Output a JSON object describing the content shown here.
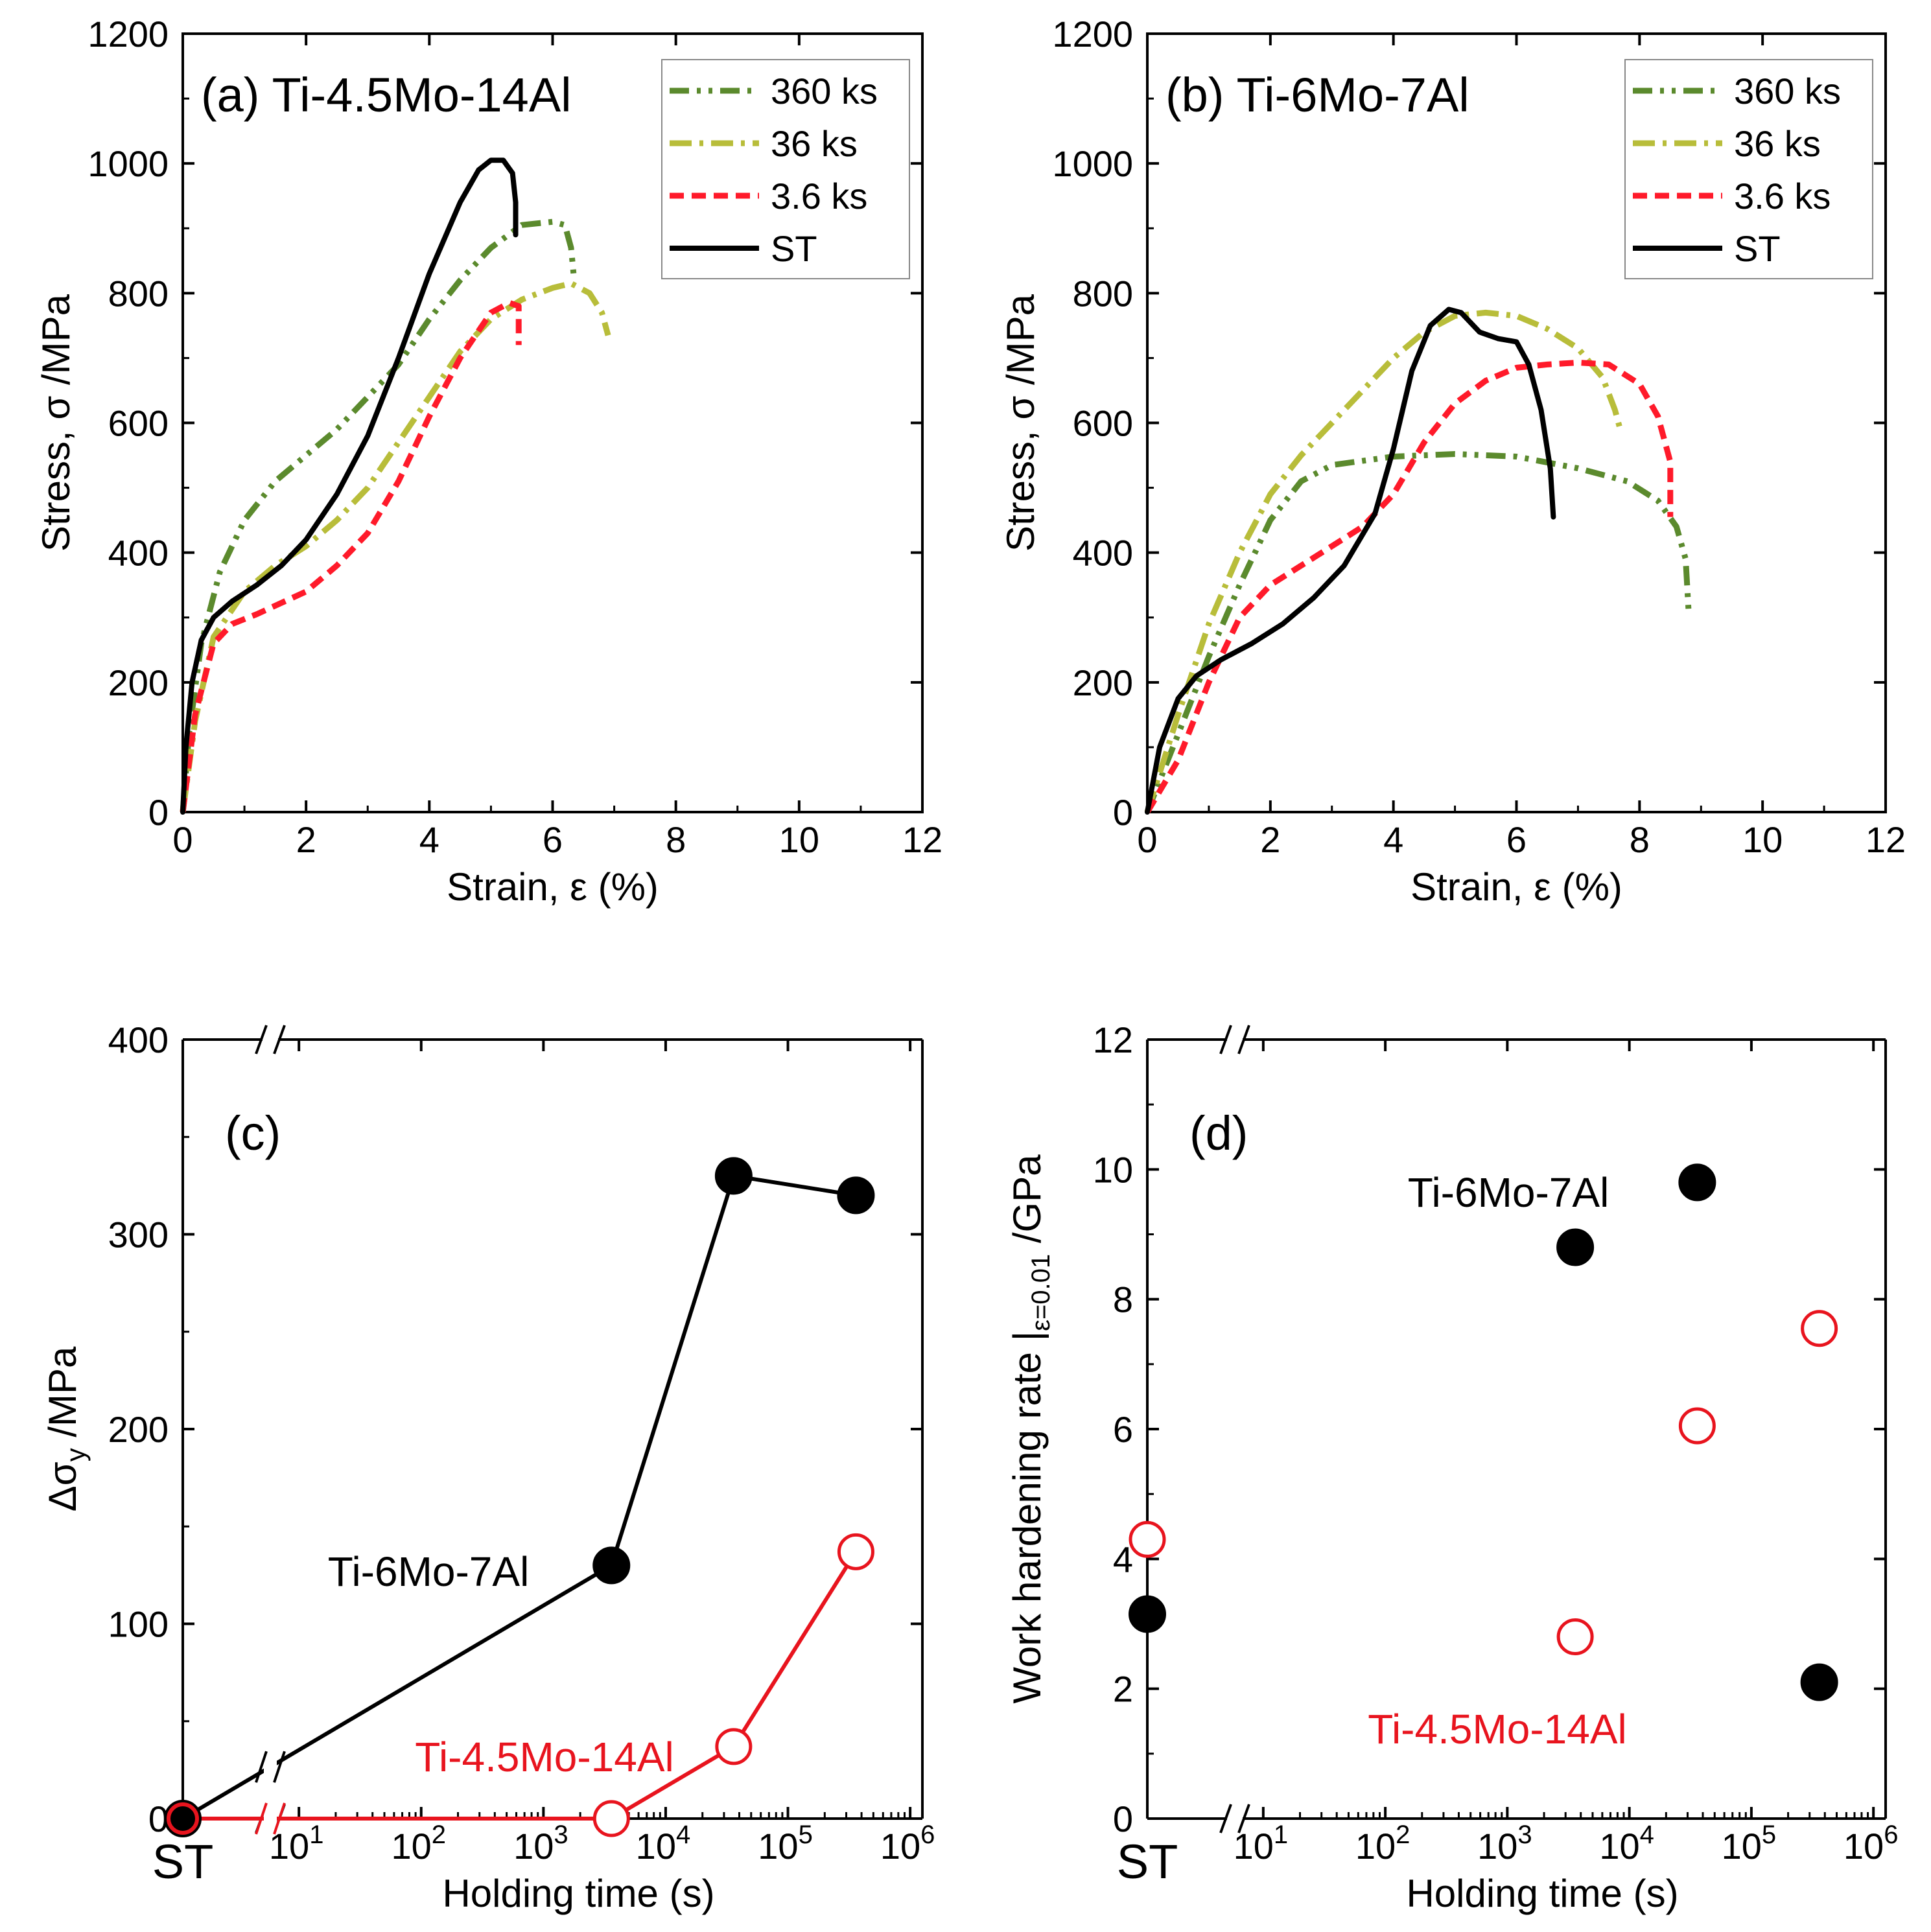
{
  "colors": {
    "c360": "#5b8a2d",
    "c36": "#b8bd3a",
    "c3_6": "#ff1a2a",
    "st": "#000000",
    "red": "#e8141e",
    "black": "#000000"
  },
  "legend_labels": [
    "360 ks",
    "36 ks",
    "3.6 ks",
    "ST"
  ],
  "chart_data": [
    {
      "id": "a",
      "type": "line",
      "title": "(a) Ti-4.5Mo-14Al",
      "xlabel": "Strain, ε (%)",
      "ylabel": "Stress, σ /MPa",
      "xlim": [
        0,
        12
      ],
      "ylim": [
        0,
        1200
      ],
      "xticks": [
        0,
        2,
        4,
        6,
        8,
        10,
        12
      ],
      "yticks": [
        0,
        200,
        400,
        600,
        800,
        1000,
        1200
      ],
      "legend": "top-right",
      "series": [
        {
          "name": "360 ks",
          "style": "dashdotdot",
          "color": "#5b8a2d",
          "points": [
            [
              0,
              0
            ],
            [
              0.1,
              120
            ],
            [
              0.3,
              260
            ],
            [
              0.6,
              370
            ],
            [
              1.0,
              450
            ],
            [
              1.5,
              510
            ],
            [
              2.0,
              550
            ],
            [
              2.5,
              590
            ],
            [
              3.0,
              640
            ],
            [
              3.5,
              690
            ],
            [
              4.0,
              760
            ],
            [
              4.5,
              820
            ],
            [
              5.0,
              870
            ],
            [
              5.5,
              905
            ],
            [
              6.0,
              910
            ],
            [
              6.2,
              905
            ],
            [
              6.3,
              870
            ],
            [
              6.35,
              820
            ]
          ]
        },
        {
          "name": "36 ks",
          "style": "dashdot",
          "color": "#b8bd3a",
          "points": [
            [
              0,
              0
            ],
            [
              0.2,
              140
            ],
            [
              0.5,
              270
            ],
            [
              1.0,
              340
            ],
            [
              1.5,
              380
            ],
            [
              2.0,
              410
            ],
            [
              2.5,
              450
            ],
            [
              3.0,
              500
            ],
            [
              3.5,
              570
            ],
            [
              4.0,
              640
            ],
            [
              4.5,
              710
            ],
            [
              5.0,
              760
            ],
            [
              5.5,
              790
            ],
            [
              6.0,
              808
            ],
            [
              6.3,
              815
            ],
            [
              6.6,
              800
            ],
            [
              6.8,
              770
            ],
            [
              6.9,
              735
            ]
          ]
        },
        {
          "name": "3.6 ks",
          "style": "dash",
          "color": "#ff1a2a",
          "points": [
            [
              0,
              0
            ],
            [
              0.2,
              150
            ],
            [
              0.5,
              260
            ],
            [
              0.8,
              290
            ],
            [
              1.2,
              305
            ],
            [
              2.0,
              340
            ],
            [
              2.5,
              380
            ],
            [
              3.0,
              430
            ],
            [
              3.5,
              510
            ],
            [
              4.0,
              610
            ],
            [
              4.5,
              700
            ],
            [
              5.0,
              770
            ],
            [
              5.3,
              785
            ],
            [
              5.45,
              780
            ],
            [
              5.45,
              720
            ]
          ]
        },
        {
          "name": "ST",
          "style": "solid",
          "color": "#000000",
          "points": [
            [
              0,
              0
            ],
            [
              0.05,
              100
            ],
            [
              0.15,
              200
            ],
            [
              0.3,
              265
            ],
            [
              0.5,
              300
            ],
            [
              0.8,
              325
            ],
            [
              1.2,
              350
            ],
            [
              1.6,
              380
            ],
            [
              2.0,
              420
            ],
            [
              2.5,
              490
            ],
            [
              3.0,
              580
            ],
            [
              3.5,
              700
            ],
            [
              4.0,
              830
            ],
            [
              4.5,
              940
            ],
            [
              4.8,
              990
            ],
            [
              5.0,
              1005
            ],
            [
              5.2,
              1005
            ],
            [
              5.35,
              985
            ],
            [
              5.4,
              940
            ],
            [
              5.4,
              890
            ]
          ]
        }
      ]
    },
    {
      "id": "b",
      "type": "line",
      "title": "(b) Ti-6Mo-7Al",
      "xlabel": "Strain, ε (%)",
      "ylabel": "Stress, σ /MPa",
      "xlim": [
        0,
        12
      ],
      "ylim": [
        0,
        1200
      ],
      "xticks": [
        0,
        2,
        4,
        6,
        8,
        10,
        12
      ],
      "yticks": [
        0,
        200,
        400,
        600,
        800,
        1000,
        1200
      ],
      "legend": "top-right",
      "series": [
        {
          "name": "360 ks",
          "style": "dashdotdot",
          "color": "#5b8a2d",
          "points": [
            [
              0,
              0
            ],
            [
              0.5,
              120
            ],
            [
              1.0,
              240
            ],
            [
              1.5,
              350
            ],
            [
              2.0,
              450
            ],
            [
              2.5,
              510
            ],
            [
              3.0,
              535
            ],
            [
              4.0,
              548
            ],
            [
              5.0,
              552
            ],
            [
              6.0,
              548
            ],
            [
              7.0,
              530
            ],
            [
              7.8,
              510
            ],
            [
              8.3,
              480
            ],
            [
              8.6,
              440
            ],
            [
              8.75,
              390
            ],
            [
              8.8,
              305
            ]
          ]
        },
        {
          "name": "36 ks",
          "style": "dashdot",
          "color": "#b8bd3a",
          "points": [
            [
              0,
              0
            ],
            [
              0.5,
              150
            ],
            [
              1.0,
              290
            ],
            [
              1.5,
              400
            ],
            [
              2.0,
              490
            ],
            [
              2.5,
              550
            ],
            [
              3.0,
              600
            ],
            [
              3.5,
              650
            ],
            [
              4.0,
              700
            ],
            [
              4.5,
              740
            ],
            [
              5.0,
              765
            ],
            [
              5.5,
              770
            ],
            [
              6.0,
              765
            ],
            [
              6.5,
              745
            ],
            [
              7.0,
              715
            ],
            [
              7.4,
              670
            ],
            [
              7.6,
              620
            ],
            [
              7.7,
              585
            ]
          ]
        },
        {
          "name": "3.6 ks",
          "style": "dash",
          "color": "#ff1a2a",
          "points": [
            [
              0,
              0
            ],
            [
              0.5,
              80
            ],
            [
              1.0,
              200
            ],
            [
              1.5,
              300
            ],
            [
              2.0,
              350
            ],
            [
              2.5,
              380
            ],
            [
              3.0,
              410
            ],
            [
              3.5,
              440
            ],
            [
              4.0,
              490
            ],
            [
              4.5,
              570
            ],
            [
              5.0,
              630
            ],
            [
              5.5,
              665
            ],
            [
              6.0,
              685
            ],
            [
              6.5,
              690
            ],
            [
              7.0,
              693
            ],
            [
              7.5,
              690
            ],
            [
              8.0,
              660
            ],
            [
              8.3,
              610
            ],
            [
              8.5,
              540
            ],
            [
              8.5,
              455
            ]
          ]
        },
        {
          "name": "ST",
          "style": "solid",
          "color": "#000000",
          "points": [
            [
              0,
              0
            ],
            [
              0.2,
              100
            ],
            [
              0.5,
              175
            ],
            [
              0.8,
              210
            ],
            [
              1.2,
              235
            ],
            [
              1.7,
              260
            ],
            [
              2.2,
              290
            ],
            [
              2.7,
              330
            ],
            [
              3.2,
              380
            ],
            [
              3.7,
              460
            ],
            [
              4.0,
              560
            ],
            [
              4.3,
              680
            ],
            [
              4.6,
              750
            ],
            [
              4.9,
              775
            ],
            [
              5.1,
              770
            ],
            [
              5.4,
              740
            ],
            [
              5.7,
              730
            ],
            [
              6.0,
              725
            ],
            [
              6.2,
              690
            ],
            [
              6.4,
              620
            ],
            [
              6.55,
              530
            ],
            [
              6.6,
              455
            ]
          ]
        }
      ]
    },
    {
      "id": "c",
      "type": "scatter",
      "title": "(c)",
      "xlabel": "Holding time (s)",
      "ylabel": "Δσy /MPa",
      "xscale": "log",
      "xlim": [
        1,
        1000000
      ],
      "ylim": [
        0,
        400
      ],
      "yticks": [
        0,
        100,
        200,
        300,
        400
      ],
      "xticks": [
        "ST",
        "10^1",
        "10^2",
        "10^3",
        "10^4",
        "10^5",
        "10^6"
      ],
      "series": [
        {
          "name": "Ti-6Mo-7Al",
          "marker": "filled",
          "color": "#000000",
          "x": [
            "ST",
            3600,
            36000,
            360000
          ],
          "y": [
            0,
            130,
            330,
            320
          ]
        },
        {
          "name": "Ti-4.5Mo-14Al",
          "marker": "open",
          "color": "#e8141e",
          "x": [
            "ST",
            3600,
            36000,
            360000
          ],
          "y": [
            0,
            0,
            37,
            137
          ]
        }
      ]
    },
    {
      "id": "d",
      "type": "scatter",
      "title": "(d)",
      "xlabel": "Holding time (s)",
      "ylabel": "Work hardening rate |ε=0.01 /GPa",
      "xscale": "log",
      "xlim": [
        1,
        1000000
      ],
      "ylim": [
        0,
        12
      ],
      "yticks": [
        0,
        2,
        4,
        6,
        8,
        10,
        12
      ],
      "xticks": [
        "ST",
        "10^1",
        "10^2",
        "10^3",
        "10^4",
        "10^5",
        "10^6"
      ],
      "series": [
        {
          "name": "Ti-6Mo-7Al",
          "marker": "filled",
          "color": "#000000",
          "x": [
            "ST",
            3600,
            36000,
            360000
          ],
          "y": [
            3.15,
            8.8,
            9.8,
            2.1
          ]
        },
        {
          "name": "Ti-4.5Mo-14Al",
          "marker": "open",
          "color": "#e8141e",
          "x": [
            "ST",
            3600,
            36000,
            360000
          ],
          "y": [
            4.3,
            2.8,
            6.05,
            7.55
          ]
        }
      ]
    }
  ]
}
